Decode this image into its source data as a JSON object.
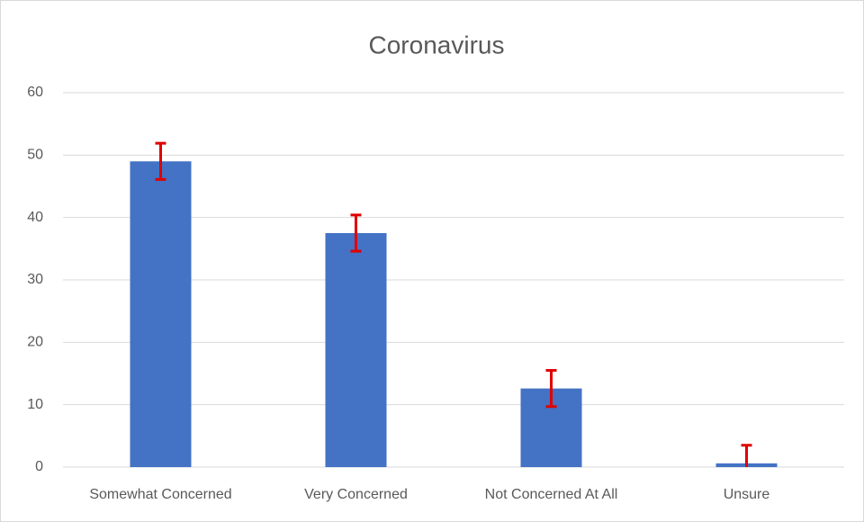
{
  "chart_data": {
    "type": "bar",
    "title": "Coronavirus",
    "categories": [
      "Somewhat Concerned",
      "Very Concerned",
      "Not Concerned At All",
      "Unsure"
    ],
    "values": [
      49,
      37.5,
      12.6,
      0.6
    ],
    "errors": [
      2.9,
      2.9,
      2.9,
      2.9
    ],
    "color": "#4472c4",
    "error_color": "#e00000",
    "ylim": [
      0,
      60
    ],
    "yticks": [
      0,
      10,
      20,
      30,
      40,
      50,
      60
    ],
    "grid": true
  }
}
